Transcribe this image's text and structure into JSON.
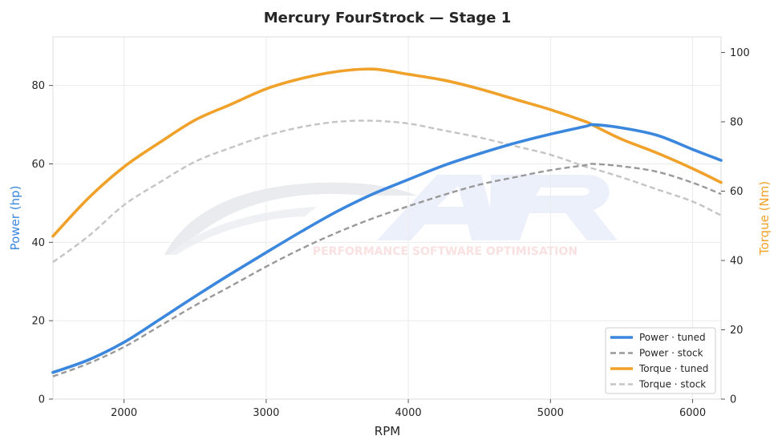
{
  "chart_data": {
    "type": "line",
    "title": "Mercury FourStrock — Stage 1",
    "xlabel": "RPM",
    "ylabel_left": "Power (hp)",
    "ylabel_right": "Torque (Nm)",
    "xlim": [
      1500,
      6200
    ],
    "ylim_left": [
      0,
      92.4
    ],
    "ylim_right": [
      0,
      104.5
    ],
    "x_ticks": [
      2000,
      3000,
      4000,
      5000,
      6000
    ],
    "y_left_ticks": [
      0,
      20,
      40,
      60,
      80
    ],
    "y_right_ticks": [
      0,
      20,
      40,
      60,
      80,
      100
    ],
    "grid": true,
    "legend_position": "lower-right",
    "watermark_text": "PERFORMANCE SOFTWARE OPTIMISATION",
    "colors": {
      "power": "#3a87dd",
      "torque": "#f0a12a",
      "stock_power": "#999999",
      "stock_torque": "#c4c4c4",
      "left_axis_label": "#3a87dd",
      "right_axis_label": "#f0a12a"
    },
    "x": [
      1500,
      1750,
      2000,
      2250,
      2500,
      2750,
      3000,
      3250,
      3500,
      3750,
      4000,
      4250,
      4500,
      4750,
      5000,
      5250,
      5300,
      5500,
      5750,
      6000,
      6200
    ],
    "series": [
      {
        "name": "Power · tuned",
        "axis": "left",
        "style": "solid",
        "color_key": "power",
        "values": [
          6.8,
          10.0,
          14.5,
          20.3,
          26.2,
          31.9,
          37.4,
          42.8,
          47.9,
          52.3,
          56.0,
          59.6,
          62.6,
          65.3,
          67.6,
          69.6,
          70.0,
          69.2,
          67.3,
          63.7,
          60.9
        ]
      },
      {
        "name": "Power · stock",
        "axis": "left",
        "style": "dashed",
        "color_key": "stock_power",
        "values": [
          5.8,
          9.1,
          13.3,
          18.6,
          23.9,
          28.8,
          33.8,
          38.4,
          42.5,
          46.1,
          49.2,
          52.1,
          54.7,
          56.6,
          58.4,
          59.7,
          60.0,
          59.4,
          58.0,
          55.2,
          52.3
        ]
      },
      {
        "name": "Torque · tuned",
        "axis": "right",
        "style": "solid",
        "color_key": "torque",
        "values": [
          47,
          58,
          67,
          74,
          80.5,
          85,
          89.5,
          92.5,
          94.5,
          95.2,
          93.7,
          92,
          89.5,
          86.5,
          83.5,
          80,
          79,
          75,
          71,
          66.5,
          62.5
        ]
      },
      {
        "name": "Torque · stock",
        "axis": "right",
        "style": "dashed",
        "color_key": "stock_torque",
        "values": [
          39.5,
          47,
          56,
          62.5,
          68.5,
          72.5,
          76,
          78.5,
          80,
          80.3,
          79.5,
          77.5,
          75.5,
          73,
          70.5,
          67,
          66.5,
          64,
          60.5,
          57,
          53
        ]
      }
    ]
  }
}
